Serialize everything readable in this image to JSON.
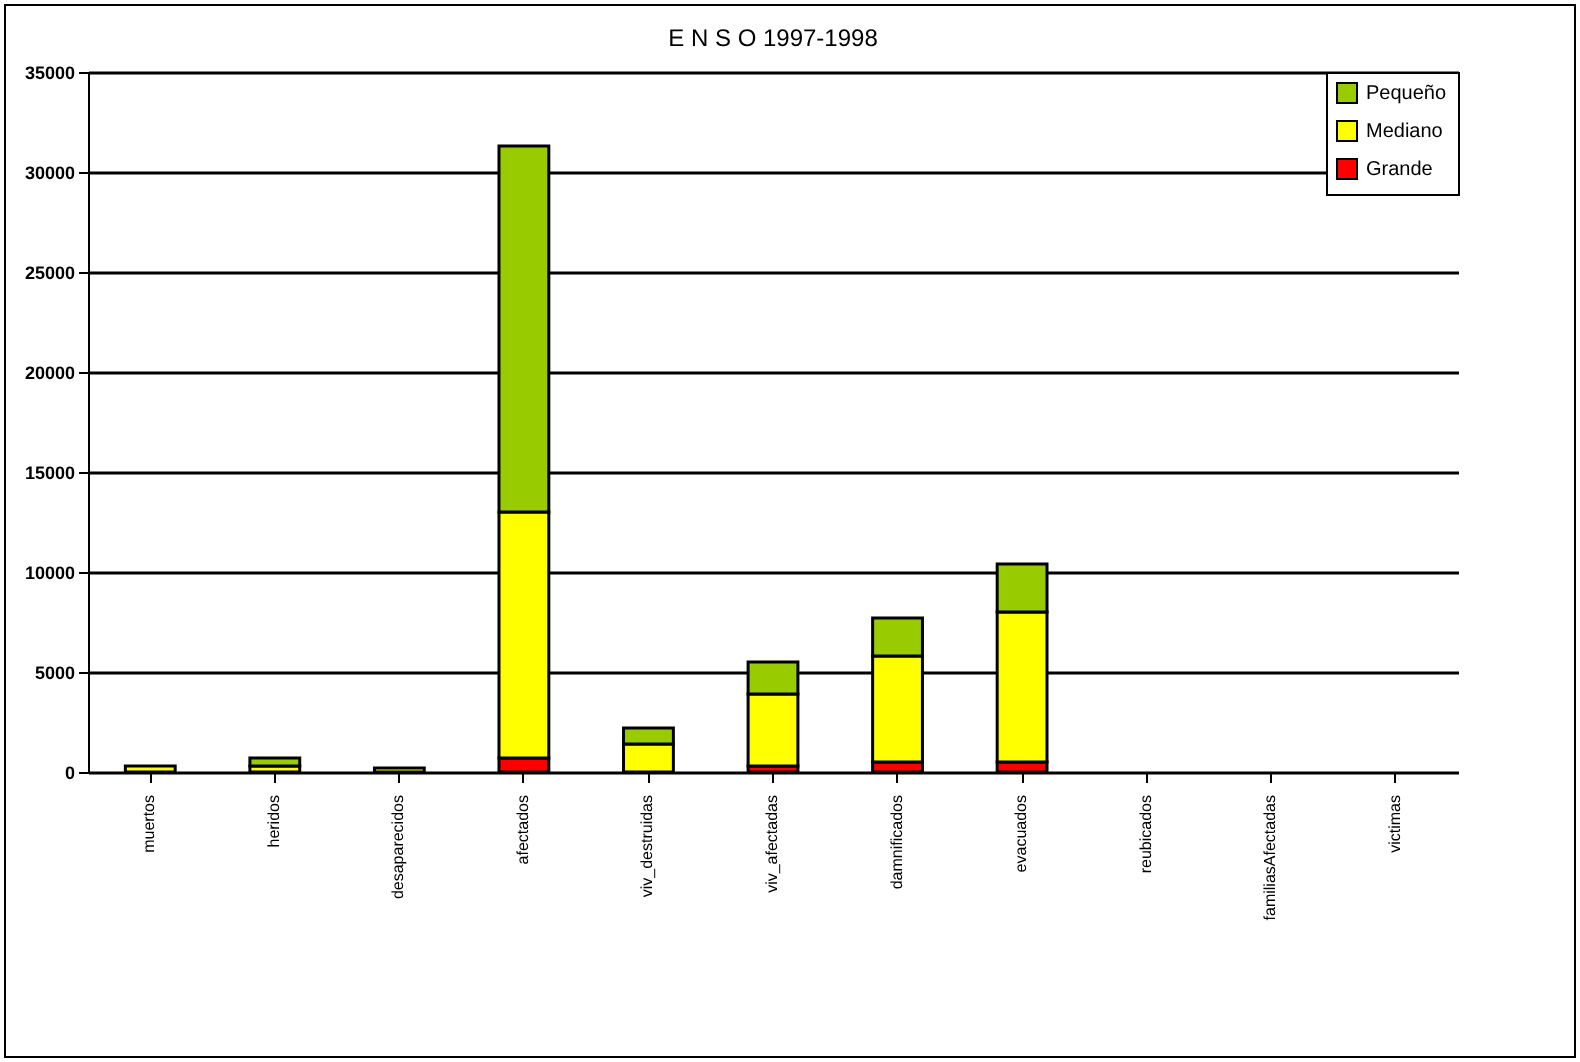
{
  "chart_data": {
    "type": "bar",
    "title": "E N S O  1997-1998",
    "stacked": true,
    "categories": [
      "muertos",
      "heridos",
      "desaparecidos",
      "afectados",
      "viv_destruidas",
      "viv_afectadas",
      "damnificados",
      "evacuados",
      "reubicados",
      "familiasAfectadas",
      "victimas"
    ],
    "series": [
      {
        "name": "Grande",
        "color": "#ff0000",
        "values": [
          0,
          0,
          0,
          700,
          0,
          300,
          500,
          500,
          0,
          0,
          0
        ]
      },
      {
        "name": "Mediano",
        "color": "#ffff00",
        "values": [
          300,
          300,
          200,
          12300,
          1400,
          3600,
          5300,
          7500,
          0,
          0,
          0
        ]
      },
      {
        "name": "Pequeño",
        "color": "#99cc00",
        "values": [
          0,
          400,
          0,
          18300,
          800,
          1600,
          1900,
          2400,
          0,
          0,
          0
        ]
      }
    ],
    "ylim": [
      0,
      35000
    ],
    "yticks": [
      0,
      5000,
      10000,
      15000,
      20000,
      25000,
      30000,
      35000
    ],
    "grid": "y",
    "legend": "top right"
  }
}
